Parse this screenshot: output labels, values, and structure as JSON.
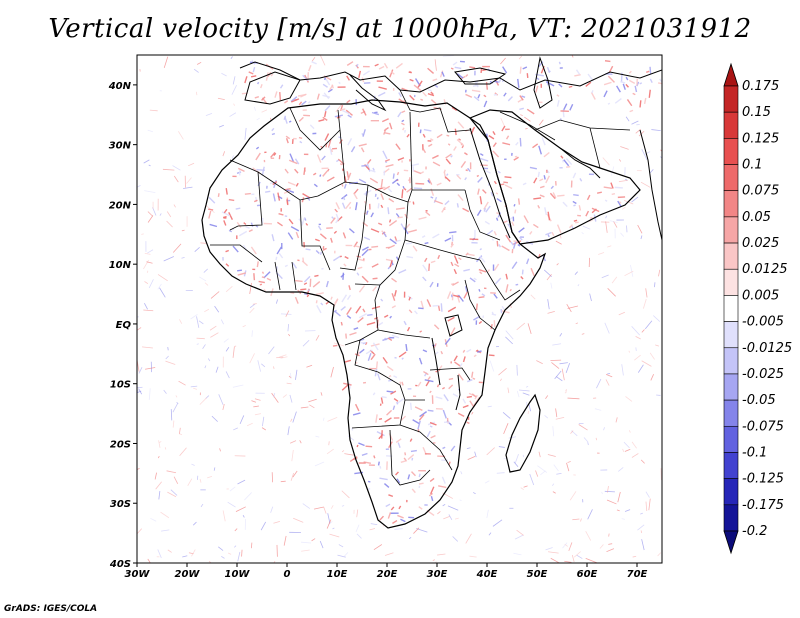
{
  "title": "Vertical velocity [m/s] at 1000hPa, VT: 2021031912",
  "credit": "GrADS: IGES/COLA",
  "map": {
    "lon_range": [
      -30,
      75
    ],
    "lat_range": [
      -40,
      45
    ],
    "lon_ticks": [
      {
        "value": -30,
        "label": "30W"
      },
      {
        "value": -20,
        "label": "20W"
      },
      {
        "value": -10,
        "label": "10W"
      },
      {
        "value": 0,
        "label": "0"
      },
      {
        "value": 10,
        "label": "10E"
      },
      {
        "value": 20,
        "label": "20E"
      },
      {
        "value": 30,
        "label": "30E"
      },
      {
        "value": 40,
        "label": "40E"
      },
      {
        "value": 50,
        "label": "50E"
      },
      {
        "value": 60,
        "label": "60E"
      },
      {
        "value": 70,
        "label": "70E"
      }
    ],
    "lat_ticks": [
      {
        "value": 40,
        "label": "40N"
      },
      {
        "value": 30,
        "label": "30N"
      },
      {
        "value": 20,
        "label": "20N"
      },
      {
        "value": 10,
        "label": "10N"
      },
      {
        "value": 0,
        "label": "EQ"
      },
      {
        "value": -10,
        "label": "10S"
      },
      {
        "value": -20,
        "label": "20S"
      },
      {
        "value": -30,
        "label": "30S"
      },
      {
        "value": -40,
        "label": "40S"
      }
    ]
  },
  "colorbar": {
    "labels": [
      "0.175",
      "0.15",
      "0.125",
      "0.1",
      "0.075",
      "0.05",
      "0.025",
      "0.0125",
      "0.005",
      "-0.005",
      "-0.0125",
      "-0.025",
      "-0.05",
      "-0.075",
      "-0.1",
      "-0.125",
      "-0.175",
      "-0.2"
    ],
    "colors": [
      "#a81414",
      "#c42626",
      "#d83838",
      "#e85050",
      "#ee6a6a",
      "#f28686",
      "#f6a6a6",
      "#fac6c6",
      "#fde2e2",
      "#ffffff",
      "#e0e0fc",
      "#c4c4f8",
      "#a6a6f2",
      "#8484ea",
      "#6262e0",
      "#4242d0",
      "#2626b8",
      "#141498",
      "#0c0c7a"
    ]
  }
}
